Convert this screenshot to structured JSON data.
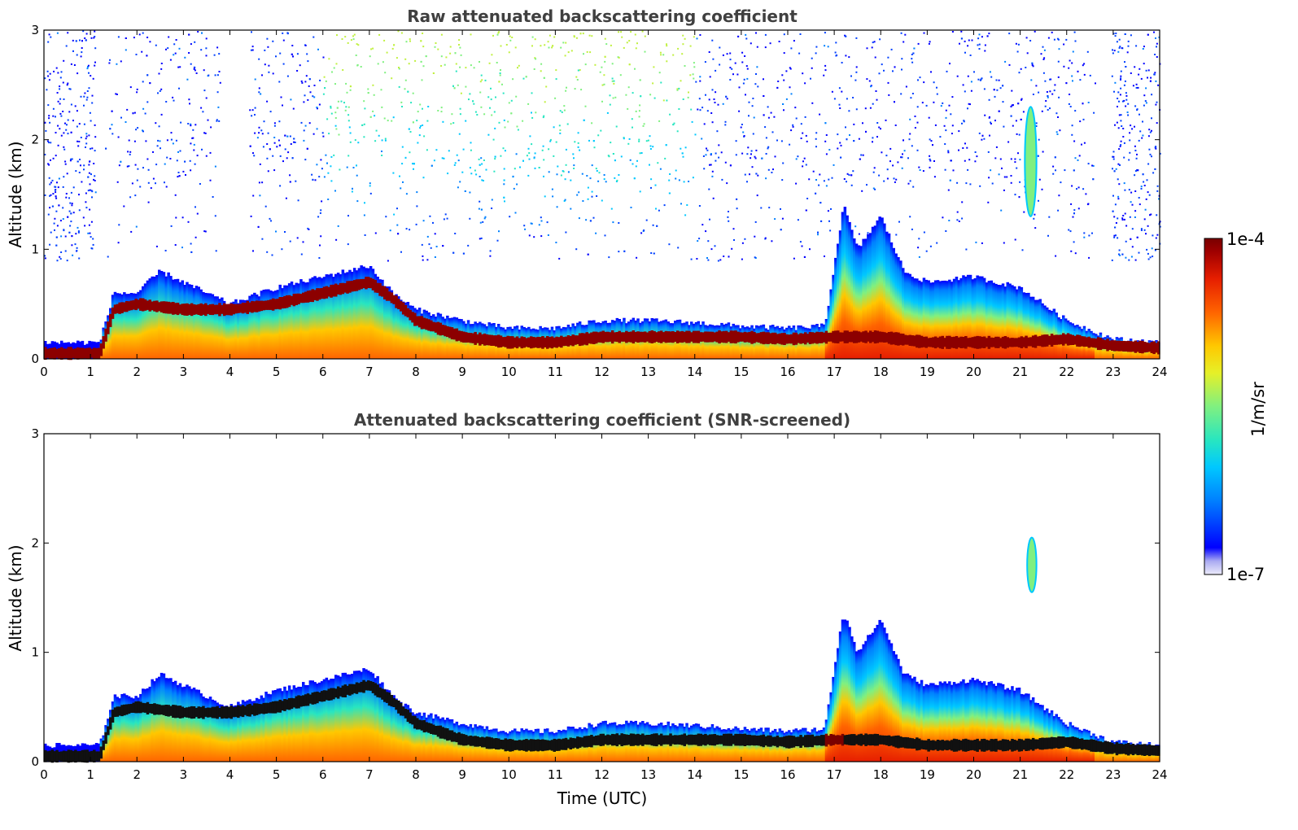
{
  "chart_data": [
    {
      "type": "heatmap",
      "title": "Raw attenuated backscattering coefficient",
      "xlabel": "",
      "ylabel": "Altitude (km)",
      "xlim": [
        0,
        24
      ],
      "ylim": [
        0,
        3
      ],
      "xticks": [
        "0",
        "1",
        "2",
        "3",
        "4",
        "5",
        "6",
        "7",
        "8",
        "9",
        "10",
        "11",
        "12",
        "13",
        "14",
        "15",
        "16",
        "17",
        "18",
        "19",
        "20",
        "21",
        "22",
        "23",
        "24"
      ],
      "yticks": [
        "0",
        "1",
        "2",
        "3"
      ],
      "boundary_layer_top_km": {
        "time": [
          0,
          1.2,
          1.5,
          2,
          2.5,
          3,
          3.5,
          4,
          5,
          6,
          7,
          7.5,
          8,
          9,
          10,
          11,
          12,
          13,
          14,
          15,
          16,
          16.8,
          17.2,
          17.5,
          18,
          18.5,
          19,
          20,
          21,
          22,
          23,
          24
        ],
        "altitude": [
          0.15,
          0.15,
          0.6,
          0.6,
          0.8,
          0.7,
          0.6,
          0.5,
          0.65,
          0.75,
          0.85,
          0.6,
          0.45,
          0.35,
          0.28,
          0.28,
          0.35,
          0.35,
          0.33,
          0.3,
          0.28,
          0.3,
          1.4,
          1.0,
          1.3,
          0.8,
          0.7,
          0.75,
          0.65,
          0.35,
          0.18,
          0.15
        ]
      },
      "backscatter_layer_km": {
        "time": [
          0,
          1.2,
          1.5,
          2,
          3,
          4,
          5,
          6,
          7,
          7.5,
          8,
          9,
          10,
          11,
          12,
          13,
          14,
          15,
          16,
          17,
          18,
          19,
          20,
          21,
          22,
          23,
          24
        ],
        "altitude": [
          0.05,
          0.05,
          0.45,
          0.5,
          0.45,
          0.45,
          0.5,
          0.6,
          0.7,
          0.55,
          0.35,
          0.2,
          0.15,
          0.15,
          0.2,
          0.2,
          0.2,
          0.2,
          0.18,
          0.2,
          0.2,
          0.15,
          0.15,
          0.15,
          0.18,
          0.12,
          0.1
        ]
      },
      "elevated_layer": {
        "time": [
          21.1,
          21.35
        ],
        "altitude": [
          1.3,
          2.3
        ]
      }
    },
    {
      "type": "heatmap",
      "title": "Attenuated backscattering coefficient (SNR-screened)",
      "xlabel": "Time (UTC)",
      "ylabel": "Altitude (km)",
      "xlim": [
        0,
        24
      ],
      "ylim": [
        0,
        3
      ],
      "xticks": [
        "0",
        "1",
        "2",
        "3",
        "4",
        "5",
        "6",
        "7",
        "8",
        "9",
        "10",
        "11",
        "12",
        "13",
        "14",
        "15",
        "16",
        "17",
        "18",
        "19",
        "20",
        "21",
        "22",
        "23",
        "24"
      ],
      "yticks": [
        "0",
        "1",
        "2",
        "3"
      ],
      "elevated_layer": {
        "time": [
          21.15,
          21.35
        ],
        "altitude": [
          1.55,
          2.05
        ]
      }
    }
  ],
  "colorbar": {
    "label": "1/m/sr",
    "max_label": "1e-4",
    "min_label": "1e-7",
    "scale": "log",
    "colormap": "jet",
    "colors": [
      "#ecebfa",
      "#aaaaf2",
      "#0000ff",
      "#0080ff",
      "#00c8ff",
      "#28e6c0",
      "#80f080",
      "#e6f028",
      "#ffc800",
      "#ff6400",
      "#e61e00",
      "#a00000",
      "#780000"
    ]
  }
}
